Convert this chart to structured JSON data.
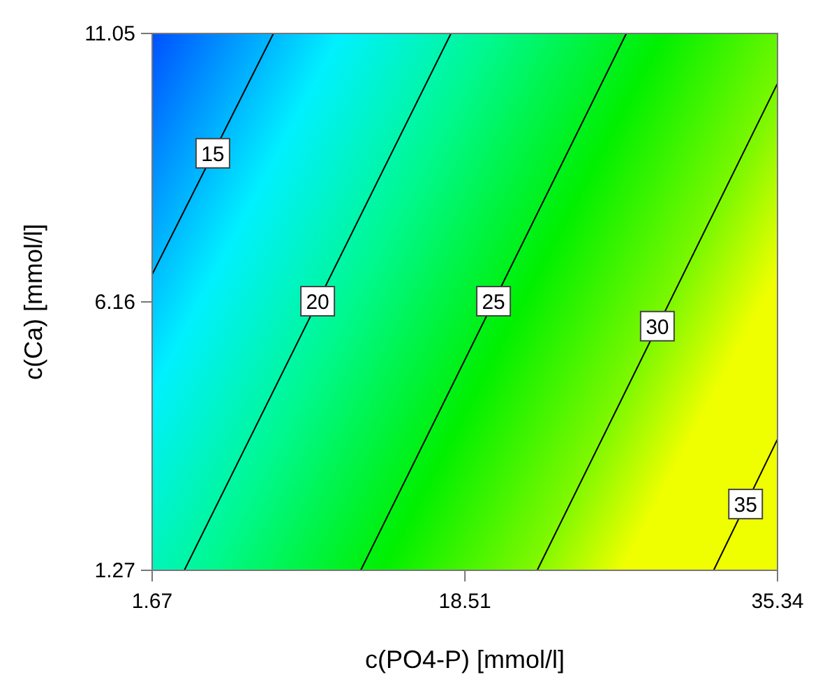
{
  "chart_data": {
    "type": "line",
    "xlabel": "c(PO4-P) [mmol/l]",
    "ylabel": "c(Ca) [mmol/l]",
    "xlim": [
      1.67,
      35.34
    ],
    "ylim": [
      1.27,
      11.05
    ],
    "xticks": [
      1.67,
      18.51,
      35.34
    ],
    "yticks": [
      1.27,
      6.16,
      11.05
    ],
    "grid": false,
    "legend": false,
    "marker": "none",
    "line_style": "solid",
    "series": [
      {
        "name": "15",
        "color": "#000000",
        "x": [
          1.67,
          8.2
        ],
        "values": [
          6.66,
          11.05
        ]
      },
      {
        "name": "20",
        "color": "#000000",
        "x": [
          3.4,
          17.76
        ],
        "values": [
          1.27,
          11.05
        ]
      },
      {
        "name": "25",
        "color": "#000000",
        "x": [
          12.9,
          27.2
        ],
        "values": [
          1.27,
          11.05
        ]
      },
      {
        "name": "30",
        "color": "#000000",
        "x": [
          22.4,
          35.34
        ],
        "values": [
          1.27,
          10.14
        ]
      },
      {
        "name": "35",
        "color": "#000000",
        "x": [
          31.9,
          35.34
        ],
        "values": [
          1.27,
          3.66
        ]
      }
    ]
  }
}
